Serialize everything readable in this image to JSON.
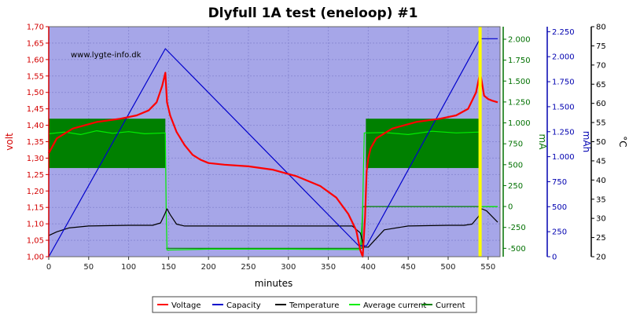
{
  "chart_data": {
    "type": "line",
    "title": "Dlyfull 1A test (eneloop) #1",
    "watermark": "www.lygte-info.dk",
    "xlabel": "minutes",
    "xlim": [
      0,
      565
    ],
    "x_ticks": [
      0,
      50,
      100,
      150,
      200,
      250,
      300,
      350,
      400,
      450,
      500,
      550
    ],
    "axes": {
      "volt": {
        "label": "volt",
        "color": "#d40000",
        "range": [
          1.0,
          1.7
        ],
        "ticks": [
          "1,00",
          "1,05",
          "1,10",
          "1,15",
          "1,20",
          "1,25",
          "1,30",
          "1,35",
          "1,40",
          "1,45",
          "1,50",
          "1,55",
          "1,60",
          "1,65",
          "1,70"
        ]
      },
      "mA": {
        "label": "mA",
        "color": "#007000",
        "range": [
          -600,
          2150
        ],
        "ticks": [
          "-500",
          "-250",
          "0",
          "250",
          "500",
          "750",
          "1.000",
          "1.250",
          "1.500",
          "1.750",
          "2.000"
        ]
      },
      "mAh": {
        "label": "mAh",
        "color": "#0000b0",
        "range": [
          0,
          2300
        ],
        "ticks": [
          "0",
          "250",
          "500",
          "750",
          "1.000",
          "1.250",
          "1.500",
          "1.750",
          "2.000",
          "2.250"
        ]
      },
      "temp": {
        "label": "°C",
        "color": "#000000",
        "range": [
          20,
          80
        ],
        "ticks": [
          "20",
          "25",
          "30",
          "35",
          "40",
          "45",
          "50",
          "55",
          "60",
          "65",
          "70",
          "75",
          "80"
        ]
      }
    },
    "legend": [
      "Voltage",
      "Capacity",
      "Temperature",
      "Average current",
      "Current"
    ],
    "series": [
      {
        "name": "Voltage",
        "axis": "volt",
        "color": "#ff0000",
        "x": [
          0,
          10,
          30,
          60,
          90,
          110,
          125,
          135,
          142,
          146,
          148,
          152,
          160,
          170,
          180,
          190,
          200,
          220,
          250,
          280,
          310,
          340,
          360,
          375,
          385,
          390,
          393,
          396,
          398,
          400,
          403,
          410,
          430,
          460,
          490,
          510,
          525,
          535,
          540,
          542,
          545,
          550,
          555,
          562
        ],
        "y": [
          1.315,
          1.36,
          1.39,
          1.41,
          1.42,
          1.43,
          1.445,
          1.47,
          1.52,
          1.56,
          1.47,
          1.43,
          1.38,
          1.34,
          1.31,
          1.295,
          1.285,
          1.28,
          1.275,
          1.265,
          1.245,
          1.215,
          1.18,
          1.13,
          1.08,
          1.02,
          1.0,
          1.12,
          1.26,
          1.3,
          1.33,
          1.36,
          1.39,
          1.41,
          1.42,
          1.43,
          1.45,
          1.5,
          1.56,
          1.535,
          1.49,
          1.48,
          1.475,
          1.47
        ]
      },
      {
        "name": "Capacity",
        "axis": "mAh",
        "color": "#0000cc",
        "x": [
          0,
          146,
          388,
          398,
          540,
          542,
          562
        ],
        "y": [
          0,
          2080,
          110,
          110,
          2180,
          2180,
          2180
        ]
      },
      {
        "name": "Temperature",
        "axis": "temp",
        "color": "#000000",
        "x": [
          0,
          10,
          25,
          50,
          100,
          130,
          140,
          145,
          148,
          152,
          160,
          170,
          200,
          300,
          380,
          390,
          395,
          400,
          420,
          450,
          500,
          520,
          530,
          538,
          542,
          548,
          555,
          562
        ],
        "y": [
          25.5,
          26.5,
          27.5,
          28,
          28.2,
          28.2,
          28.8,
          31,
          32.5,
          31,
          28.5,
          28,
          28,
          28,
          28,
          26.2,
          22.5,
          22.5,
          27,
          28,
          28.2,
          28.2,
          28.5,
          30.5,
          32.5,
          32,
          30.5,
          29
        ]
      },
      {
        "name": "Average current",
        "axis": "mA",
        "color": "#00ee00",
        "x": [
          0,
          20,
          40,
          60,
          80,
          100,
          120,
          146,
          147,
          148,
          200,
          300,
          390,
          392,
          393,
          395,
          400,
          420,
          450,
          480,
          510,
          540,
          541,
          542,
          562
        ],
        "y": [
          870,
          890,
          860,
          905,
          875,
          895,
          870,
          880,
          0,
          -520,
          -510,
          -510,
          -515,
          -230,
          0,
          880,
          880,
          885,
          860,
          900,
          880,
          890,
          0,
          0,
          0
        ]
      },
      {
        "name": "Current",
        "axis": "mA",
        "color": "#008000",
        "band_x": [
          0,
          146,
          397,
          540
        ],
        "band_high": 1050,
        "band_low": 460,
        "x": [
          147,
          200,
          300,
          390,
          392,
          393,
          540,
          541,
          562
        ],
        "y": [
          -500,
          -500,
          -500,
          -500,
          -500,
          0,
          0,
          0,
          0
        ]
      }
    ],
    "markers": [
      {
        "x": 540,
        "color": "#ffff00"
      }
    ],
    "colors": {
      "plot_bg": "#a6a6e8"
    }
  }
}
